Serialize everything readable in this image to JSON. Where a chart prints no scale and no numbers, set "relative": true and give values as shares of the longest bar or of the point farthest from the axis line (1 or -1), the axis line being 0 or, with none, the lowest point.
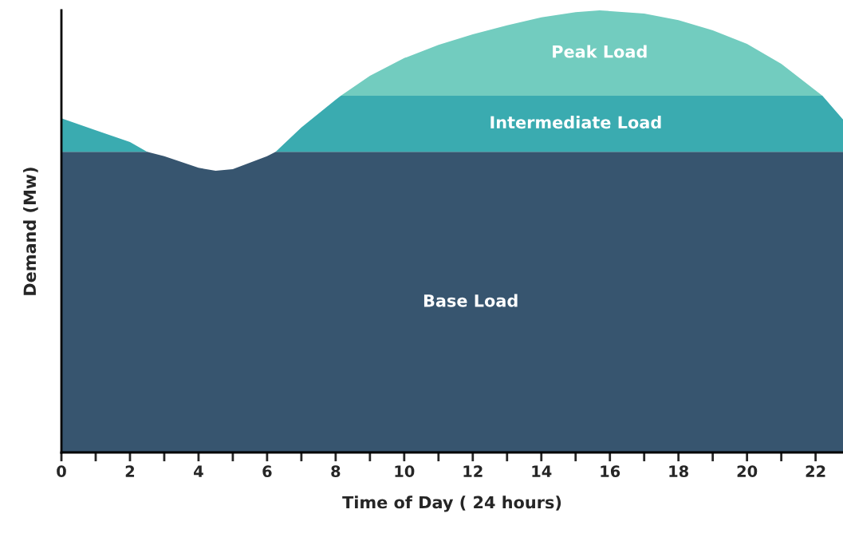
{
  "chart_data": {
    "type": "area",
    "stacked": true,
    "relative": true,
    "xlabel": "Time of Day ( 24 hours)",
    "ylabel": "Demand (Mw)",
    "x": [
      0,
      1,
      2,
      2.5,
      3,
      4,
      4.5,
      5,
      6,
      6.25,
      7,
      8,
      8.15,
      9,
      10,
      11,
      12,
      13,
      14,
      15,
      15.7,
      17,
      18,
      19,
      20,
      21,
      22.2,
      22.8
    ],
    "series": [
      {
        "name": "Base Load",
        "color": "#37556f",
        "values": [
          0.68,
          0.68,
          0.68,
          0.68,
          0.67,
          0.644,
          0.637,
          0.641,
          0.67,
          0.68,
          0.68,
          0.68,
          0.68,
          0.68,
          0.68,
          0.68,
          0.68,
          0.68,
          0.68,
          0.68,
          0.68,
          0.68,
          0.68,
          0.68,
          0.68,
          0.68,
          0.68,
          0.68
        ]
      },
      {
        "name": "Intermediate Load",
        "color": "#3aabb0",
        "values": [
          0.076,
          0.049,
          0.022,
          0,
          0,
          0,
          0,
          0,
          0,
          0,
          0.055,
          0.118,
          0.127,
          0.127,
          0.127,
          0.127,
          0.127,
          0.127,
          0.127,
          0.127,
          0.127,
          0.127,
          0.127,
          0.127,
          0.127,
          0.127,
          0.127,
          0.073
        ]
      },
      {
        "name": "Peak Load",
        "color": "#72ccbf",
        "values": [
          0,
          0,
          0,
          0,
          0,
          0,
          0,
          0,
          0,
          0,
          0,
          0,
          0,
          0.045,
          0.085,
          0.115,
          0.139,
          0.159,
          0.177,
          0.189,
          0.193,
          0.186,
          0.171,
          0.148,
          0.117,
          0.072,
          0,
          0
        ]
      }
    ],
    "xlim": [
      0,
      22.8
    ],
    "xticks": [
      0,
      {
        "value": 1,
        "label": null
      },
      2,
      {
        "value": 3,
        "label": null
      },
      4,
      {
        "value": 5,
        "label": null
      },
      6,
      {
        "value": 7,
        "label": null
      },
      8,
      {
        "value": 9,
        "label": null
      },
      10,
      {
        "value": 11,
        "label": null
      },
      12,
      {
        "value": 13,
        "label": null
      },
      14,
      {
        "value": 15,
        "label": null
      },
      16,
      {
        "value": 17,
        "label": null
      },
      18,
      {
        "value": 19,
        "label": null
      },
      20,
      {
        "value": 21,
        "label": null
      },
      22
    ],
    "tick_labels": "x",
    "grid": false,
    "legend": false
  }
}
